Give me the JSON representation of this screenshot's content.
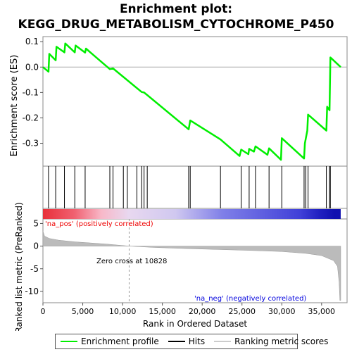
{
  "title": "Enrichment plot:",
  "subtitle": "KEGG_DRUG_METABOLISM_CYTOCHROME_P450",
  "colors": {
    "enrichment_line": "#00ee00",
    "hits": "#000000",
    "ranking_fill": "#bbbbbb",
    "pos_label": "#ee0000",
    "neg_label": "#0000dd",
    "zero_line": "#aaaaaa"
  },
  "legend": [
    {
      "label": "Enrichment profile",
      "color": "#00ee00",
      "icon": "green-line-icon"
    },
    {
      "label": "Hits",
      "color": "#000000",
      "icon": "black-line-icon"
    },
    {
      "label": "Ranking metric scores",
      "color": "#cccccc",
      "icon": "gray-line-icon"
    }
  ],
  "chart_data": {
    "type": "line",
    "x_axis": {
      "label": "Rank in Ordered Dataset",
      "range": [
        0,
        38200
      ],
      "ticks": [
        0,
        5000,
        10000,
        15000,
        20000,
        25000,
        30000,
        35000
      ],
      "tick_labels": [
        "0",
        "5,000",
        "10,000",
        "15,000",
        "20,000",
        "25,000",
        "30,000",
        "35,000"
      ]
    },
    "enrichment_panel": {
      "ylabel": "Enrichment score (ES)",
      "ylim": [
        -0.39,
        0.12
      ],
      "ticks": [
        0.1,
        0.0,
        -0.1,
        -0.2,
        -0.3
      ],
      "tick_labels": [
        "0.1",
        "0.0",
        "-0.1",
        "-0.2",
        "-0.3"
      ],
      "series": [
        {
          "x": [
            0,
            700,
            800,
            1600,
            1700,
            2700,
            2800,
            4000,
            4100,
            5300,
            5400,
            8400,
            8800,
            12400,
            12700,
            13100,
            18300,
            18500,
            22300,
            24700,
            24900,
            25800,
            25900,
            26500,
            26700,
            28200,
            28400,
            29900,
            30000,
            32800,
            32900,
            33200,
            33300,
            35600,
            35700,
            36000,
            36100,
            37400
          ],
          "y": [
            0.0,
            -0.018,
            0.052,
            0.027,
            0.08,
            0.058,
            0.093,
            0.058,
            0.085,
            0.057,
            0.073,
            -0.008,
            -0.005,
            -0.098,
            -0.1,
            -0.11,
            -0.245,
            -0.21,
            -0.285,
            -0.35,
            -0.325,
            -0.343,
            -0.322,
            -0.333,
            -0.312,
            -0.345,
            -0.32,
            -0.365,
            -0.28,
            -0.36,
            -0.3,
            -0.25,
            -0.187,
            -0.25,
            -0.156,
            -0.17,
            0.038,
            0.0
          ]
        }
      ]
    },
    "hits": [
      700,
      1600,
      2700,
      4000,
      5300,
      8400,
      8800,
      10100,
      10600,
      11800,
      12400,
      12700,
      13100,
      18300,
      18500,
      22300,
      24900,
      25900,
      26700,
      28400,
      30000,
      32800,
      33000,
      33300,
      35600,
      36000,
      36100
    ],
    "heatmap": {
      "stops": [
        {
          "x": 0,
          "color": "#e8303a"
        },
        {
          "x": 4000,
          "color": "#f06070"
        },
        {
          "x": 7500,
          "color": "#f8b8c8"
        },
        {
          "x": 11000,
          "color": "#e8d8f0"
        },
        {
          "x": 17000,
          "color": "#d0c8f0"
        },
        {
          "x": 23000,
          "color": "#8080e8"
        },
        {
          "x": 28000,
          "color": "#6060e0"
        },
        {
          "x": 33000,
          "color": "#4040d8"
        },
        {
          "x": 35500,
          "color": "#2020c0"
        },
        {
          "x": 37400,
          "color": "#1010b0"
        }
      ]
    },
    "ranking_panel": {
      "ylabel": "Ranked list metric (PreRanked)",
      "ylim": [
        -12.5,
        6
      ],
      "ticks": [
        5,
        0,
        -5,
        -10
      ],
      "tick_labels": [
        "5",
        "0",
        "-5",
        "-10"
      ],
      "profile": {
        "x": [
          0,
          200,
          800,
          2000,
          4000,
          6000,
          8000,
          10828,
          14000,
          18000,
          22000,
          26000,
          30000,
          33000,
          35000,
          36500,
          37000,
          37200,
          37300,
          37400
        ],
        "y": [
          3.3,
          2.2,
          1.7,
          1.3,
          0.95,
          0.7,
          0.45,
          0.0,
          -0.3,
          -0.55,
          -0.75,
          -0.95,
          -1.2,
          -1.6,
          -2.1,
          -3.2,
          -4.5,
          -8.0,
          -12.0,
          -12.0
        ]
      },
      "zero_cross": 10828,
      "zero_cross_label": "Zero cross at 10828",
      "pos_label": "'na_pos' (positively correlated)",
      "neg_label": "'na_neg' (negatively correlated)"
    }
  }
}
